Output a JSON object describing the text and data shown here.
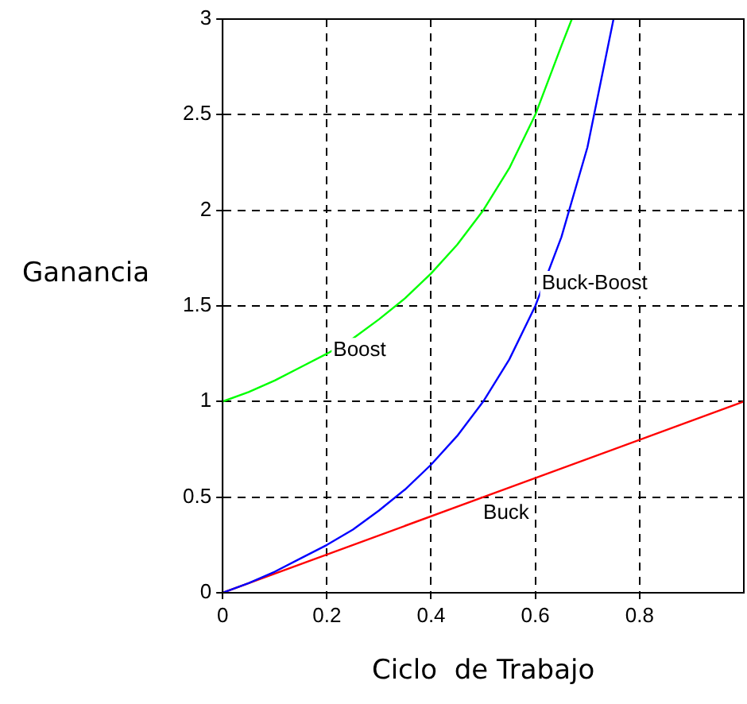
{
  "chart_data": {
    "type": "line",
    "xlabel": "Ciclo  de Trabajo",
    "ylabel": "Ganancia",
    "xlim": [
      0,
      1
    ],
    "ylim": [
      0,
      3
    ],
    "xticks": [
      0,
      0.2,
      0.4,
      0.6,
      0.8
    ],
    "yticks": [
      0,
      0.5,
      1,
      1.5,
      2,
      2.5,
      3
    ],
    "grid": true,
    "line_style": "solid",
    "series": [
      {
        "name": "Boost",
        "color": "#00ff00",
        "x": [
          0,
          0.05,
          0.1,
          0.15,
          0.2,
          0.25,
          0.3,
          0.35,
          0.4,
          0.45,
          0.5,
          0.55,
          0.6,
          0.65,
          0.67
        ],
        "values": [
          1,
          1.05,
          1.11,
          1.18,
          1.25,
          1.33,
          1.43,
          1.54,
          1.67,
          1.82,
          2,
          2.22,
          2.5,
          2.86,
          3
        ]
      },
      {
        "name": "Buck-Boost",
        "color": "#0000ff",
        "x": [
          0,
          0.05,
          0.1,
          0.15,
          0.2,
          0.25,
          0.3,
          0.35,
          0.4,
          0.45,
          0.5,
          0.55,
          0.6,
          0.65,
          0.7,
          0.75
        ],
        "values": [
          0,
          0.05,
          0.11,
          0.18,
          0.25,
          0.33,
          0.43,
          0.54,
          0.67,
          0.82,
          1,
          1.22,
          1.5,
          1.86,
          2.33,
          3
        ]
      },
      {
        "name": "Buck",
        "color": "#ff0000",
        "x": [
          0,
          0.5,
          1
        ],
        "values": [
          0,
          0.5,
          1
        ]
      }
    ]
  }
}
